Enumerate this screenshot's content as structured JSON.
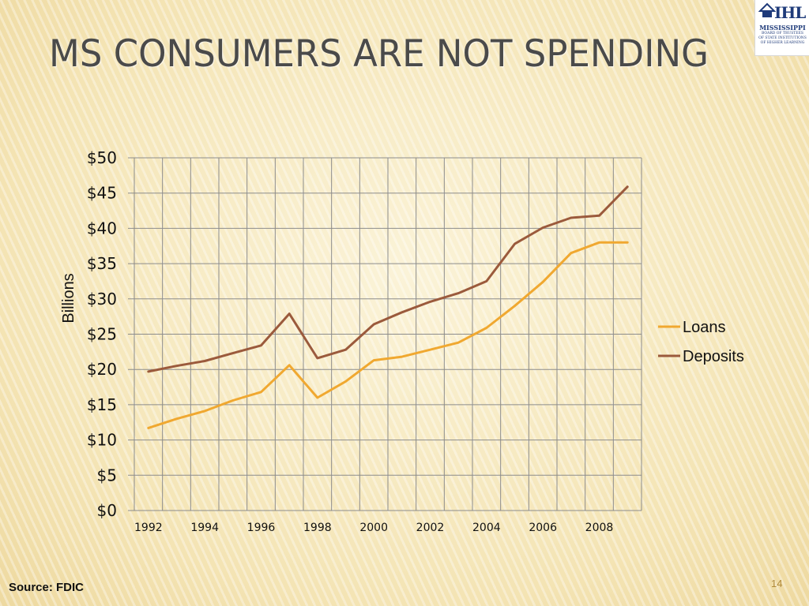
{
  "slide": {
    "title": "MS CONSUMERS ARE NOT SPENDING",
    "source": "Source: FDIC",
    "page_number": "14",
    "logo": {
      "mark": "IHL",
      "name": "MISSISSIPPI",
      "subtitle_lines": [
        "BOARD OF TRUSTEES",
        "OF STATE INSTITUTIONS",
        "OF HIGHER LEARNING"
      ]
    }
  },
  "chart_data": {
    "type": "line",
    "title": "",
    "xlabel": "",
    "ylabel": "Billions",
    "x": [
      1992,
      1993,
      1994,
      1995,
      1996,
      1997,
      1998,
      1999,
      2000,
      2001,
      2002,
      2003,
      2004,
      2005,
      2006,
      2007,
      2008,
      2009
    ],
    "x_tick_labels": [
      "1992",
      "1994",
      "1996",
      "1998",
      "2000",
      "2002",
      "2004",
      "2006",
      "2008"
    ],
    "ylim": [
      0,
      50
    ],
    "y_tick_labels": [
      "$0",
      "$5",
      "$10",
      "$15",
      "$20",
      "$25",
      "$30",
      "$35",
      "$40",
      "$45",
      "$50"
    ],
    "grid": true,
    "legend": "right",
    "series": [
      {
        "name": "Loans",
        "color": "#f0a830",
        "values": [
          11.7,
          13.0,
          14.1,
          15.6,
          16.8,
          20.6,
          16.0,
          18.3,
          21.3,
          21.8,
          22.8,
          23.8,
          25.9,
          29.0,
          32.4,
          36.5,
          38.0,
          38.0
        ]
      },
      {
        "name": "Deposits",
        "color": "#9b5a3c",
        "values": [
          19.7,
          20.5,
          21.2,
          22.3,
          23.4,
          27.9,
          21.6,
          22.8,
          26.4,
          28.1,
          29.6,
          30.8,
          32.5,
          37.8,
          40.1,
          41.5,
          41.8,
          45.9
        ]
      }
    ]
  }
}
